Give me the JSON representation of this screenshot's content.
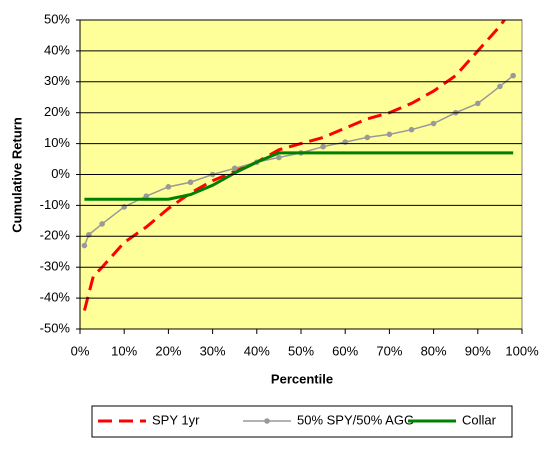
{
  "chart_data": {
    "type": "line",
    "x_label": "Percentile",
    "y_label": "Cumulative Return",
    "xlim": [
      0,
      100
    ],
    "xticks": [
      {
        "value": 0,
        "label": "0%"
      },
      {
        "value": 10,
        "label": "10%"
      },
      {
        "value": 20,
        "label": "20%"
      },
      {
        "value": 30,
        "label": "30%"
      },
      {
        "value": 40,
        "label": "40%"
      },
      {
        "value": 50,
        "label": "50%"
      },
      {
        "value": 60,
        "label": "60%"
      },
      {
        "value": 70,
        "label": "70%"
      },
      {
        "value": 80,
        "label": "80%"
      },
      {
        "value": 90,
        "label": "90%"
      },
      {
        "value": 100,
        "label": "100%"
      }
    ],
    "ylim": [
      -50,
      50
    ],
    "yticks": [
      {
        "value": -50,
        "label": "-50%"
      },
      {
        "value": -40,
        "label": "-40%"
      },
      {
        "value": -30,
        "label": "-30%"
      },
      {
        "value": -20,
        "label": "-20%"
      },
      {
        "value": -10,
        "label": "-10%"
      },
      {
        "value": 0,
        "label": "0%"
      },
      {
        "value": 10,
        "label": "10%"
      },
      {
        "value": 20,
        "label": "20%"
      },
      {
        "value": 30,
        "label": "30%"
      },
      {
        "value": 40,
        "label": "40%"
      },
      {
        "value": 50,
        "label": "50%"
      }
    ],
    "grid": true,
    "legend": "bottom",
    "series": [
      {
        "name": "SPY 1yr",
        "color": "#ff0000",
        "style": "dashed",
        "x": [
          1,
          3,
          5,
          10,
          15,
          20,
          25,
          30,
          35,
          40,
          45,
          50,
          55,
          60,
          65,
          70,
          75,
          80,
          85,
          90,
          95,
          97
        ],
        "values": [
          -44,
          -33,
          -30,
          -22,
          -17,
          -11,
          -6,
          -2,
          1,
          4,
          8,
          10,
          12,
          15,
          18,
          20,
          23,
          27,
          32,
          40,
          48,
          52
        ]
      },
      {
        "name": "50% SPY/50% AGG",
        "color": "#999999",
        "style": "markers",
        "x": [
          1,
          2,
          5,
          10,
          15,
          20,
          25,
          30,
          35,
          40,
          45,
          50,
          55,
          60,
          65,
          70,
          75,
          80,
          85,
          90,
          95,
          98
        ],
        "values": [
          -23,
          -19.5,
          -16,
          -10.5,
          -7,
          -4,
          -2.5,
          0,
          2,
          4,
          5.5,
          7,
          9,
          10.5,
          12,
          13,
          14.5,
          16.5,
          20,
          23,
          28.5,
          32
        ]
      },
      {
        "name": "Collar",
        "color": "#008000",
        "style": "solid",
        "x": [
          1,
          20,
          25,
          30,
          35,
          40,
          45,
          98
        ],
        "values": [
          -8,
          -8,
          -6.5,
          -3.5,
          0.5,
          4,
          7,
          7
        ]
      }
    ]
  }
}
